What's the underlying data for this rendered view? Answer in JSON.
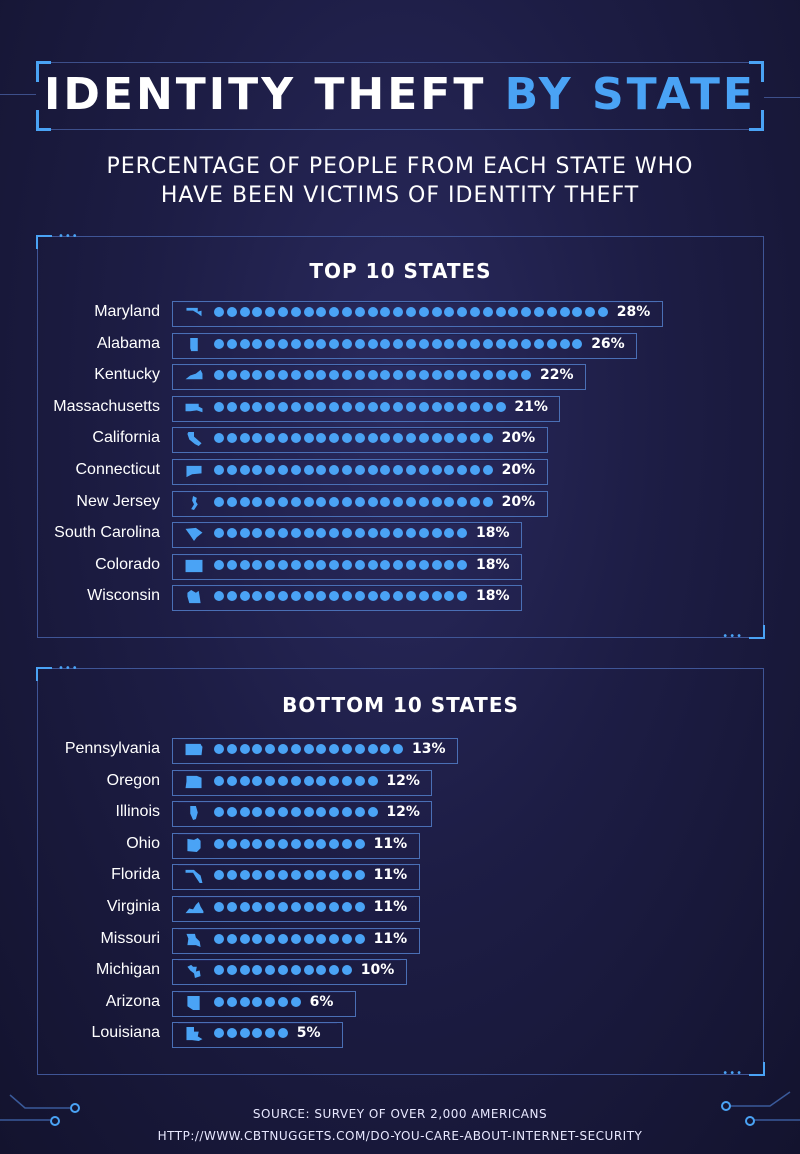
{
  "header": {
    "title_main": "IDENTITY THEFT",
    "title_accent": "BY STATE",
    "subtitle_line1": "PERCENTAGE OF PEOPLE FROM EACH STATE WHO",
    "subtitle_line2": "HAVE BEEN VICTIMS OF IDENTITY THEFT"
  },
  "colors": {
    "accent": "#4aa3f5",
    "background": "#1d1d45",
    "panel_border": "#3f5596"
  },
  "footer": {
    "source": "SOURCE:  SURVEY OF OVER 2,000 AMERICANS",
    "url": "HTTP://WWW.CBTNUGGETS.COM/DO-YOU-CARE-ABOUT-INTERNET-SECURITY"
  },
  "chart_data": [
    {
      "type": "bar",
      "title": "TOP 10 STATES",
      "categories": [
        "Maryland",
        "Alabama",
        "Kentucky",
        "Massachusetts",
        "California",
        "Connecticut",
        "New Jersey",
        "South Carolina",
        "Colorado",
        "Wisconsin"
      ],
      "values": [
        28,
        26,
        22,
        21,
        20,
        20,
        20,
        18,
        18,
        18
      ],
      "labels": [
        "28%",
        "26%",
        "22%",
        "21%",
        "20%",
        "20%",
        "20%",
        "18%",
        "18%",
        "18%"
      ],
      "icons": [
        "maryland-icon",
        "alabama-icon",
        "kentucky-icon",
        "massachusetts-icon",
        "california-icon",
        "connecticut-icon",
        "new-jersey-icon",
        "south-carolina-icon",
        "colorado-icon",
        "wisconsin-icon"
      ],
      "unit": "%"
    },
    {
      "type": "bar",
      "title": "BOTTOM 10 STATES",
      "categories": [
        "Pennsylvania",
        "Oregon",
        "Illinois",
        "Ohio",
        "Florida",
        "Virginia",
        "Missouri",
        "Michigan",
        "Arizona",
        "Louisiana"
      ],
      "values": [
        13,
        12,
        12,
        11,
        11,
        11,
        11,
        10,
        6,
        5
      ],
      "labels": [
        "13%",
        "12%",
        "12%",
        "11%",
        "11%",
        "11%",
        "11%",
        "10%",
        "6%",
        "5%"
      ],
      "icons": [
        "pennsylvania-icon",
        "oregon-icon",
        "illinois-icon",
        "ohio-icon",
        "florida-icon",
        "virginia-icon",
        "missouri-icon",
        "michigan-icon",
        "arizona-icon",
        "louisiana-icon"
      ],
      "unit": "%"
    }
  ]
}
